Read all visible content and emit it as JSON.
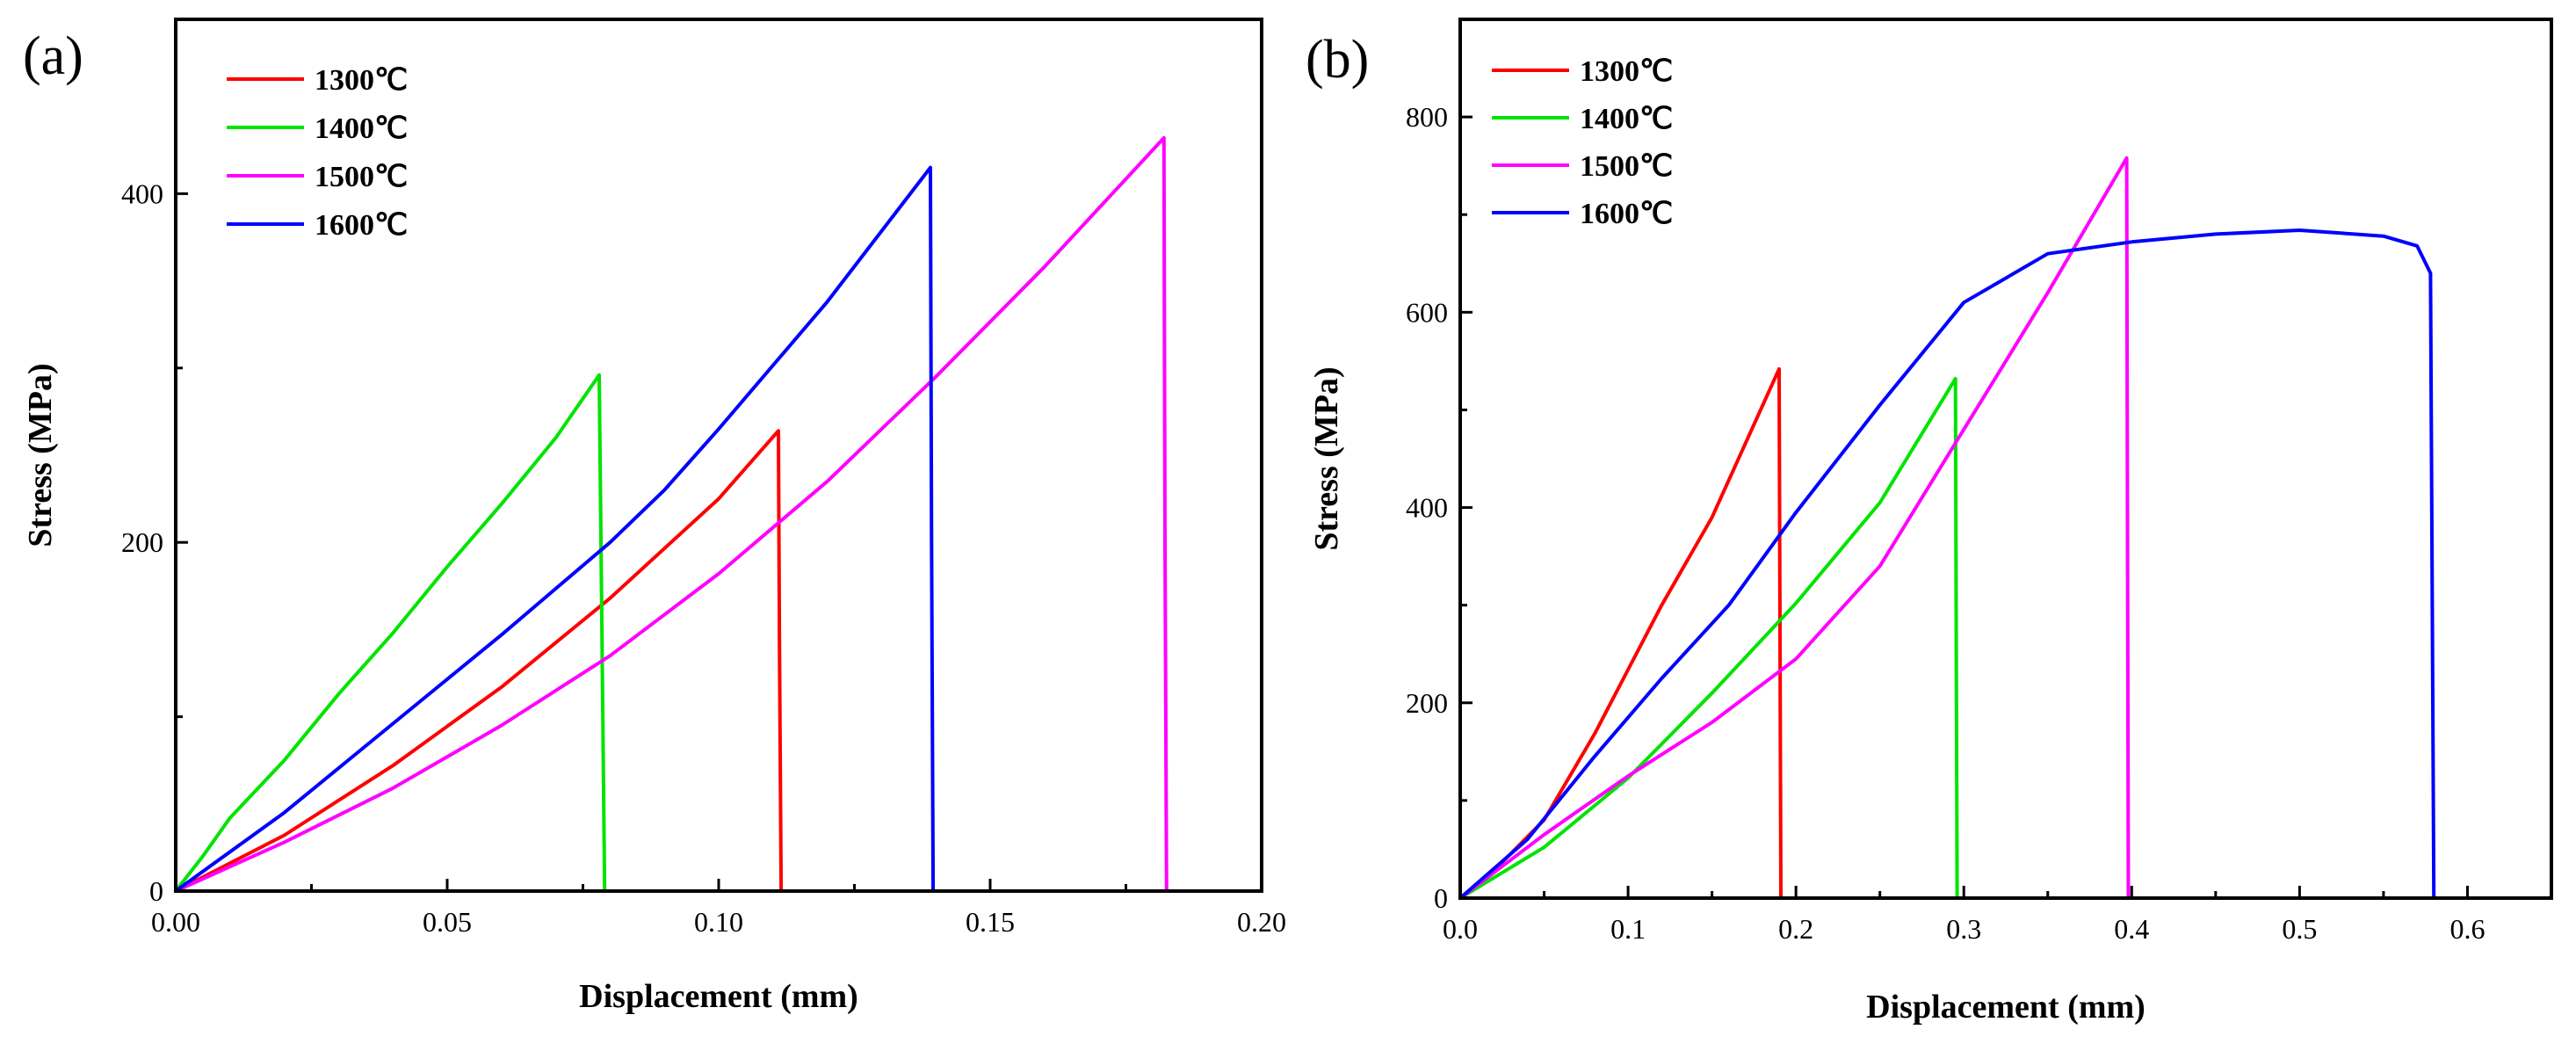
{
  "chart_data": [
    {
      "type": "line",
      "panel_label": "(a)",
      "xlabel": "Displacement (mm)",
      "ylabel": "Stress (MPa)",
      "xlim": [
        0,
        0.2
      ],
      "ylim": [
        0,
        500
      ],
      "xticks": [
        0,
        0.05,
        0.1,
        0.15,
        0.2
      ],
      "xtick_labels": [
        "0.00",
        "0.05",
        "0.10",
        "0.15",
        "0.20"
      ],
      "yticks": [
        0,
        200,
        400
      ],
      "ytick_labels": [
        "0",
        "200",
        "400"
      ],
      "legend_position": "top-left",
      "series": [
        {
          "name": "1300℃",
          "color": "#ff0000",
          "x": [
            0,
            0.02,
            0.04,
            0.06,
            0.08,
            0.1,
            0.111,
            0.1112,
            0.1115
          ],
          "y": [
            0,
            32,
            72,
            117,
            168,
            225,
            264,
            140,
            0
          ]
        },
        {
          "name": "1400℃",
          "color": "#00e400",
          "x": [
            0,
            0.005,
            0.01,
            0.02,
            0.03,
            0.04,
            0.05,
            0.06,
            0.07,
            0.078,
            0.0785,
            0.079
          ],
          "y": [
            0,
            20,
            42,
            75,
            113,
            148,
            186,
            222,
            260,
            296,
            150,
            0
          ]
        },
        {
          "name": "1500℃",
          "color": "#ff00ff",
          "x": [
            0,
            0.02,
            0.04,
            0.06,
            0.08,
            0.1,
            0.12,
            0.14,
            0.16,
            0.182,
            0.1822,
            0.1825
          ],
          "y": [
            0,
            28,
            59,
            95,
            135,
            182,
            235,
            295,
            358,
            432,
            200,
            0
          ]
        },
        {
          "name": "1600℃",
          "color": "#0000ff",
          "x": [
            0,
            0.02,
            0.04,
            0.06,
            0.08,
            0.09,
            0.1,
            0.12,
            0.139,
            0.1392,
            0.1395
          ],
          "y": [
            0,
            45,
            96,
            147,
            200,
            230,
            265,
            338,
            415,
            200,
            0
          ]
        }
      ]
    },
    {
      "type": "line",
      "panel_label": "(b)",
      "xlabel": "Displacement (mm)",
      "ylabel": "Stress (MPa)",
      "xlim": [
        0,
        0.65
      ],
      "ylim": [
        0,
        900
      ],
      "xticks": [
        0,
        0.1,
        0.2,
        0.3,
        0.4,
        0.5,
        0.6
      ],
      "xtick_labels": [
        "0.0",
        "0.1",
        "0.2",
        "0.3",
        "0.4",
        "0.5",
        "0.6"
      ],
      "yticks": [
        0,
        200,
        400,
        600,
        800
      ],
      "ytick_labels": [
        "0",
        "200",
        "400",
        "600",
        "800"
      ],
      "legend_position": "top-left",
      "series": [
        {
          "name": "1300℃",
          "color": "#ff0000",
          "x": [
            0,
            0.02,
            0.05,
            0.08,
            0.1,
            0.12,
            0.15,
            0.19,
            0.1905,
            0.191
          ],
          "y": [
            0,
            28,
            80,
            168,
            234,
            300,
            390,
            542,
            270,
            0
          ]
        },
        {
          "name": "1400℃",
          "color": "#00e400",
          "x": [
            0,
            0.05,
            0.1,
            0.15,
            0.2,
            0.25,
            0.295,
            0.2955,
            0.296
          ],
          "y": [
            0,
            52,
            123,
            210,
            302,
            405,
            532,
            260,
            0
          ]
        },
        {
          "name": "1500℃",
          "color": "#ff00ff",
          "x": [
            0,
            0.05,
            0.1,
            0.15,
            0.2,
            0.25,
            0.3,
            0.35,
            0.397,
            0.3975,
            0.398
          ],
          "y": [
            0,
            65,
            125,
            180,
            245,
            340,
            480,
            620,
            758,
            380,
            0
          ]
        },
        {
          "name": "1600℃",
          "color": "#0000ff",
          "x": [
            0,
            0.04,
            0.08,
            0.12,
            0.16,
            0.2,
            0.25,
            0.3,
            0.35,
            0.4,
            0.45,
            0.5,
            0.55,
            0.57,
            0.578,
            0.579,
            0.58
          ],
          "y": [
            0,
            60,
            145,
            225,
            300,
            395,
            505,
            610,
            660,
            672,
            680,
            684,
            678,
            668,
            640,
            320,
            0
          ]
        }
      ]
    }
  ]
}
